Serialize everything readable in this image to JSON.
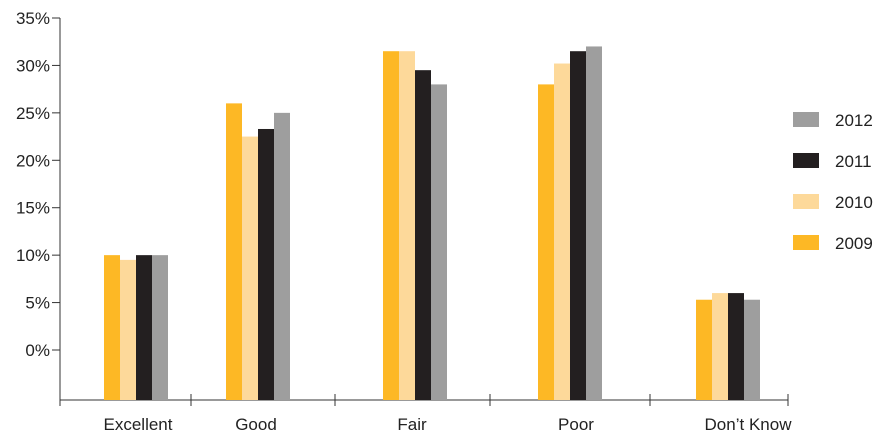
{
  "chart_data": {
    "type": "bar",
    "title": "",
    "xlabel": "",
    "ylabel": "",
    "ylim": [
      0,
      35
    ],
    "y_ticks": [
      {
        "value": 0,
        "label": "0%"
      },
      {
        "value": 5,
        "label": "5%"
      },
      {
        "value": 10,
        "label": "10%"
      },
      {
        "value": 15,
        "label": "15%"
      },
      {
        "value": 20,
        "label": "20%"
      },
      {
        "value": 25,
        "label": "25%"
      },
      {
        "value": 30,
        "label": "30%"
      },
      {
        "value": 35,
        "label": "35%"
      }
    ],
    "categories": [
      "Excellent",
      "Good",
      "Fair",
      "Poor",
      "Don’t Know"
    ],
    "series": [
      {
        "name": "2009",
        "color": "#FDB825",
        "values": [
          10,
          26,
          31.5,
          28,
          5.3
        ]
      },
      {
        "name": "2010",
        "color": "#FDD99A",
        "values": [
          9.5,
          22.5,
          31.5,
          30.2,
          6
        ]
      },
      {
        "name": "2011",
        "color": "#231F20",
        "values": [
          10,
          23.3,
          29.5,
          31.5,
          6
        ]
      },
      {
        "name": "2012",
        "color": "#9E9E9E",
        "values": [
          10,
          25,
          28,
          32,
          5.3
        ]
      }
    ],
    "legend": {
      "position": "right",
      "order": [
        "2012",
        "2011",
        "2010",
        "2009"
      ]
    },
    "grid": false
  }
}
